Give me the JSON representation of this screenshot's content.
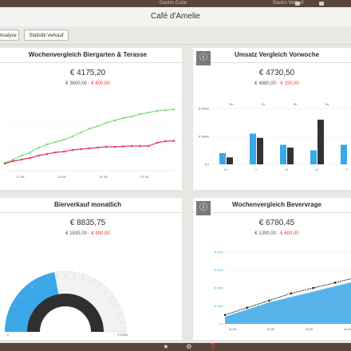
{
  "topbar": {
    "title": "Gastro Cube",
    "right_text": "Gastro Verlauf"
  },
  "header": {
    "title": "Café d'Amelie"
  },
  "tabs": [
    {
      "label": "Analyse"
    },
    {
      "label": "Statistik Verkauf"
    }
  ],
  "panels": {
    "p1": {
      "title": "Wochenvergleich Biergarten & Terasse",
      "value": "€ 4175,20",
      "sub_a": "€ 3600,00",
      "sub_b": "- € 600,00",
      "x_ticks": [
        "17.08.",
        "24.08.",
        "31.08.",
        "07.09."
      ]
    },
    "p2": {
      "title": "Umsatz Vergleich Vorwoche",
      "value": "€ 4730,50",
      "sub_a": "€ 4880,00",
      "sub_b": "- € 150,00",
      "y_ticks": [
        "€ 20000",
        "€ 10000",
        "€ 0"
      ],
      "col_heads": [
        "Mo",
        "Di",
        "Mi",
        "Do"
      ],
      "x_ticks": [
        "Mo",
        "Di",
        "Mi",
        "Do",
        "Fr"
      ]
    },
    "p3": {
      "title": "Bierverkauf monatlich",
      "value": "€ 8835,75",
      "sub_a": "€ 1835,00",
      "sub_b": "- € 900,00",
      "min": "0",
      "max": "€ 20000"
    },
    "p4": {
      "title": "Wochenvergleich Bevervrage",
      "value": "€ 6780,45",
      "sub_a": "€ 1300,00",
      "sub_b": "- € 600,00",
      "y_ticks": [
        "€ 4000",
        "€ 3000",
        "€ 2000",
        "€ 1000",
        "€ 0"
      ],
      "x_ticks": [
        "01.09.",
        "02.09.",
        "03.09.",
        "04.09."
      ]
    }
  },
  "chart_data": [
    {
      "type": "line",
      "title": "Wochenvergleich Biergarten & Terasse",
      "x": [
        0,
        1,
        2,
        3,
        4,
        5,
        6,
        7,
        8,
        9,
        10,
        11,
        12,
        13,
        14,
        15,
        16,
        17,
        18,
        19,
        20
      ],
      "series": [
        {
          "color": "#7dde7d",
          "values": [
            20,
            28,
            38,
            46,
            58,
            66,
            72,
            78,
            86,
            96,
            105,
            112,
            120,
            126,
            132,
            136,
            142,
            146,
            150,
            152,
            154
          ]
        },
        {
          "color": "#e8375f",
          "values": [
            18,
            24,
            28,
            32,
            38,
            42,
            46,
            48,
            52,
            54,
            56,
            58,
            60,
            60,
            61,
            62,
            62,
            62,
            70,
            74,
            75
          ]
        }
      ]
    },
    {
      "type": "bar",
      "title": "Umsatz Vergleich Vorwoche",
      "categories": [
        "Mo",
        "Di",
        "Mi",
        "Do",
        "Fr"
      ],
      "series": [
        {
          "color": "#3aa7e8",
          "values": [
            4000,
            11000,
            7000,
            5000,
            7000
          ]
        },
        {
          "color": "#333333",
          "values": [
            2500,
            9500,
            6000,
            16000,
            0
          ]
        }
      ],
      "ylim": [
        0,
        20000
      ]
    },
    {
      "type": "gauge",
      "title": "Bierverkauf monatlich",
      "value": 8835.75,
      "range": [
        0,
        20000
      ],
      "color": "#3aa7e8"
    },
    {
      "type": "area",
      "title": "Wochenvergleich Bevervrage",
      "series": [
        {
          "color": "#3aa7e8",
          "values": [
            400,
            800,
            1200,
            1500,
            1800,
            2100,
            2400
          ]
        },
        {
          "color": "#222222",
          "values": [
            500,
            900,
            1300,
            1700,
            2000,
            2300,
            2600
          ]
        }
      ],
      "ylim": [
        0,
        4000
      ]
    }
  ]
}
